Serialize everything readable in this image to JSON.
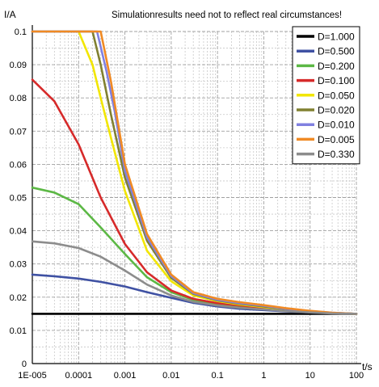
{
  "chart_data": {
    "type": "line",
    "title": "",
    "note": "Simulationresults need not to reflect real circumstances!",
    "xlabel": "t/s",
    "ylabel": "I/A",
    "xscale": "log",
    "xlim": [
      1e-05,
      100
    ],
    "ylim": [
      0,
      0.1
    ],
    "grid": true,
    "legend_position": "top-right",
    "x_tick_labels": [
      "1E-005",
      "0.0001",
      "0.001",
      "0.01",
      "0.1",
      "1",
      "10",
      "100"
    ],
    "y_tick_labels": [
      "0",
      "0.01",
      "0.02",
      "0.03",
      "0.04",
      "0.05",
      "0.06",
      "0.07",
      "0.08",
      "0.09",
      "0.1"
    ],
    "series": [
      {
        "name": "D=1.000",
        "color": "#000000",
        "x": [
          1e-05,
          100
        ],
        "y": [
          0.015,
          0.015
        ]
      },
      {
        "name": "D=0.500",
        "color": "#3f51a3",
        "x": [
          1e-05,
          3e-05,
          0.0001,
          0.0003,
          0.001,
          0.003,
          0.01,
          0.03,
          0.1,
          0.3,
          1,
          3,
          10,
          30,
          100
        ],
        "y": [
          0.0268,
          0.0263,
          0.0256,
          0.0246,
          0.0232,
          0.0215,
          0.0198,
          0.0183,
          0.0172,
          0.0165,
          0.0161,
          0.0157,
          0.0154,
          0.0152,
          0.015
        ]
      },
      {
        "name": "D=0.200",
        "color": "#5cb845",
        "x": [
          1e-05,
          3e-05,
          0.0001,
          0.0003,
          0.001,
          0.003,
          0.01,
          0.03,
          0.1,
          0.3,
          1,
          3,
          10,
          30,
          100
        ],
        "y": [
          0.053,
          0.0515,
          0.048,
          0.041,
          0.033,
          0.026,
          0.0215,
          0.0192,
          0.018,
          0.0172,
          0.0166,
          0.016,
          0.0155,
          0.0152,
          0.015
        ]
      },
      {
        "name": "D=0.100",
        "color": "#d62a2a",
        "x": [
          1e-05,
          3e-05,
          0.0001,
          0.0003,
          0.001,
          0.003,
          0.01,
          0.03,
          0.1,
          0.3,
          1,
          3,
          10,
          30,
          100
        ],
        "y": [
          0.0855,
          0.079,
          0.066,
          0.05,
          0.036,
          0.0275,
          0.022,
          0.0195,
          0.0182,
          0.0175,
          0.0168,
          0.0162,
          0.0156,
          0.0152,
          0.015
        ]
      },
      {
        "name": "D=0.050",
        "color": "#f2e600",
        "x": [
          0.0001,
          0.0002,
          0.0003,
          0.0005,
          0.001,
          0.003,
          0.01,
          0.03,
          0.1,
          0.3,
          1,
          3,
          10,
          30,
          100
        ],
        "y": [
          0.1,
          0.09,
          0.08,
          0.068,
          0.052,
          0.034,
          0.0248,
          0.0205,
          0.0188,
          0.0178,
          0.017,
          0.0163,
          0.0157,
          0.0152,
          0.015
        ]
      },
      {
        "name": "D=0.020",
        "color": "#808030",
        "x": [
          1e-05,
          0.0002,
          0.0003,
          0.0005,
          0.001,
          0.003,
          0.01,
          0.03,
          0.1,
          0.3,
          1,
          3,
          10,
          30,
          100
        ],
        "y": [
          0.1,
          0.1,
          0.09,
          0.075,
          0.056,
          0.037,
          0.0258,
          0.021,
          0.019,
          0.018,
          0.0172,
          0.0164,
          0.0157,
          0.0152,
          0.015
        ]
      },
      {
        "name": "D=0.010",
        "color": "#8080e0",
        "x": [
          1e-05,
          0.00025,
          0.0004,
          0.0006,
          0.001,
          0.003,
          0.01,
          0.03,
          0.1,
          0.3,
          1,
          3,
          10,
          30,
          100
        ],
        "y": [
          0.1,
          0.1,
          0.088,
          0.076,
          0.058,
          0.038,
          0.0263,
          0.0212,
          0.0192,
          0.0182,
          0.0174,
          0.0165,
          0.0158,
          0.0153,
          0.015
        ]
      },
      {
        "name": "D=0.005",
        "color": "#f08a24",
        "x": [
          1e-05,
          0.0003,
          0.0005,
          0.001,
          0.003,
          0.01,
          0.03,
          0.1,
          0.3,
          1,
          3,
          10,
          30,
          100
        ],
        "y": [
          0.1,
          0.1,
          0.085,
          0.06,
          0.039,
          0.0268,
          0.0215,
          0.0195,
          0.0185,
          0.0176,
          0.0167,
          0.0159,
          0.0153,
          0.015
        ]
      },
      {
        "name": "D=0.330",
        "color": "#8c8c8c",
        "x": [
          1e-05,
          3e-05,
          0.0001,
          0.0003,
          0.001,
          0.003,
          0.01,
          0.03,
          0.1,
          0.3,
          1,
          3,
          10,
          30,
          100
        ],
        "y": [
          0.0368,
          0.0362,
          0.0348,
          0.0322,
          0.028,
          0.0238,
          0.0205,
          0.0186,
          0.0175,
          0.0168,
          0.0163,
          0.0158,
          0.0154,
          0.0151,
          0.015
        ]
      }
    ]
  }
}
